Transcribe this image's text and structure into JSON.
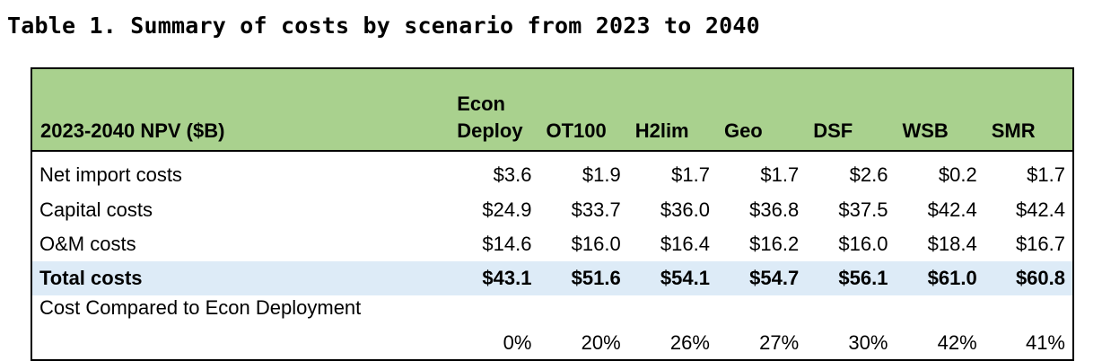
{
  "caption": "Table 1. Summary of costs by scenario from 2023 to 2040",
  "table": {
    "header_label": "2023-2040 NPV ($B)",
    "columns": [
      {
        "line1": "Econ",
        "line2": "Deploy"
      },
      {
        "line1": "",
        "line2": "OT100"
      },
      {
        "line1": "",
        "line2": "H2lim"
      },
      {
        "line1": "",
        "line2": "Geo"
      },
      {
        "line1": "",
        "line2": "DSF"
      },
      {
        "line1": "",
        "line2": "WSB"
      },
      {
        "line1": "",
        "line2": "SMR"
      }
    ],
    "rows": [
      {
        "label": "Net import costs",
        "values": [
          "$3.6",
          "$1.9",
          "$1.7",
          "$1.7",
          "$2.6",
          "$0.2",
          "$1.7"
        ]
      },
      {
        "label": "Capital costs",
        "values": [
          "$24.9",
          "$33.7",
          "$36.0",
          "$36.8",
          "$37.5",
          "$42.4",
          "$42.4"
        ]
      },
      {
        "label": "O&M costs",
        "values": [
          "$14.6",
          "$16.0",
          "$16.4",
          "$16.2",
          "$16.0",
          "$18.4",
          "$16.7"
        ]
      },
      {
        "label": "Total costs",
        "values": [
          "$43.1",
          "$51.6",
          "$54.1",
          "$54.7",
          "$56.1",
          "$61.0",
          "$60.8"
        ]
      }
    ],
    "comparison": {
      "label": "Cost Compared to Econ Deployment",
      "values": [
        "0%",
        "20%",
        "26%",
        "27%",
        "30%",
        "42%",
        "41%"
      ]
    }
  },
  "colors": {
    "header_bg": "#a9d18e",
    "total_row_bg": "#ddebf7",
    "border": "#000000"
  }
}
